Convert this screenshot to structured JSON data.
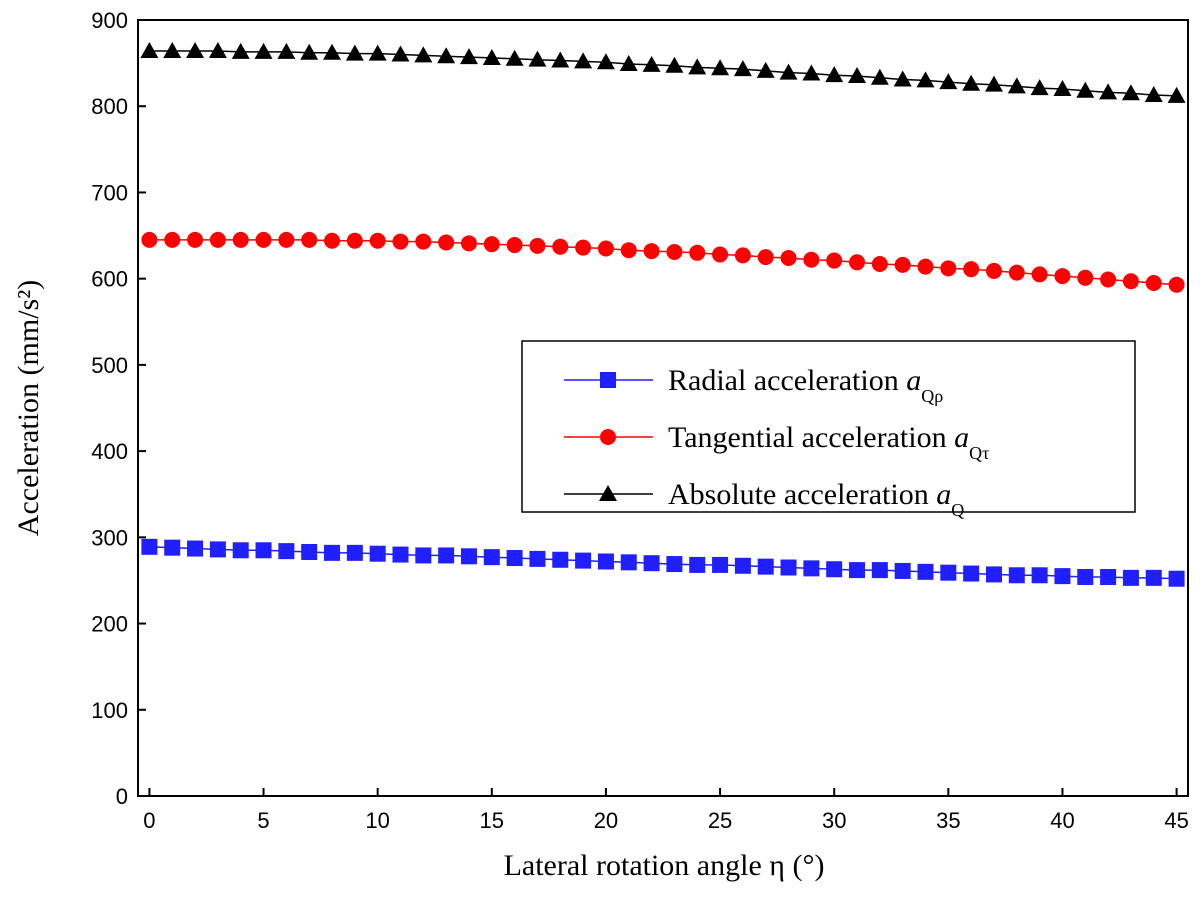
{
  "chart_data": {
    "type": "line",
    "xlabel": "Lateral rotation angle η (°)",
    "ylabel": "Acceleration (mm/s²)",
    "xlim": [
      -0.5,
      45.5
    ],
    "ylim": [
      0,
      900
    ],
    "xticks": [
      "0",
      "5",
      "10",
      "15",
      "20",
      "25",
      "30",
      "35",
      "40",
      "45"
    ],
    "yticks": [
      "0",
      "100",
      "200",
      "300",
      "400",
      "500",
      "600",
      "700",
      "800",
      "900"
    ],
    "grid": false,
    "legend_position": "right",
    "x": [
      0,
      1,
      2,
      3,
      4,
      5,
      6,
      7,
      8,
      9,
      10,
      11,
      12,
      13,
      14,
      15,
      16,
      17,
      18,
      19,
      20,
      21,
      22,
      23,
      24,
      25,
      26,
      27,
      28,
      29,
      30,
      31,
      32,
      33,
      34,
      35,
      36,
      37,
      38,
      39,
      40,
      41,
      42,
      43,
      44,
      45
    ],
    "series": [
      {
        "legend_prefix": "Radial acceleration ",
        "symbol": "a",
        "subscript": "Qρ",
        "color": "#1f1fff",
        "marker": "square",
        "values": [
          289,
          288,
          287,
          286,
          285,
          285,
          284,
          283,
          282,
          282,
          281,
          280,
          279,
          279,
          278,
          277,
          276,
          275,
          274,
          273,
          272,
          271,
          270,
          269,
          268,
          268,
          267,
          266,
          265,
          264,
          263,
          262,
          262,
          261,
          260,
          259,
          258,
          257,
          256,
          256,
          255,
          254,
          254,
          253,
          253,
          252
        ]
      },
      {
        "legend_prefix": "Tangential acceleration ",
        "symbol": "a",
        "subscript": "Qτ",
        "color": "#ff0000",
        "marker": "circle",
        "values": [
          645,
          645,
          645,
          645,
          645,
          645,
          645,
          645,
          644,
          644,
          644,
          643,
          643,
          642,
          641,
          640,
          639,
          638,
          637,
          636,
          635,
          633,
          632,
          631,
          630,
          628,
          627,
          625,
          624,
          622,
          621,
          619,
          617,
          616,
          614,
          612,
          611,
          609,
          607,
          605,
          603,
          601,
          599,
          597,
          595,
          593
        ]
      },
      {
        "legend_prefix": "Absolute acceleration ",
        "symbol": "a",
        "subscript": "Q",
        "color": "#000000",
        "marker": "triangle",
        "values": [
          864,
          864,
          864,
          864,
          863,
          863,
          863,
          862,
          862,
          861,
          861,
          860,
          859,
          858,
          857,
          856,
          855,
          854,
          853,
          852,
          851,
          849,
          848,
          847,
          845,
          844,
          843,
          841,
          839,
          838,
          836,
          835,
          833,
          831,
          830,
          828,
          826,
          825,
          823,
          821,
          820,
          818,
          816,
          815,
          813,
          812
        ]
      }
    ]
  }
}
